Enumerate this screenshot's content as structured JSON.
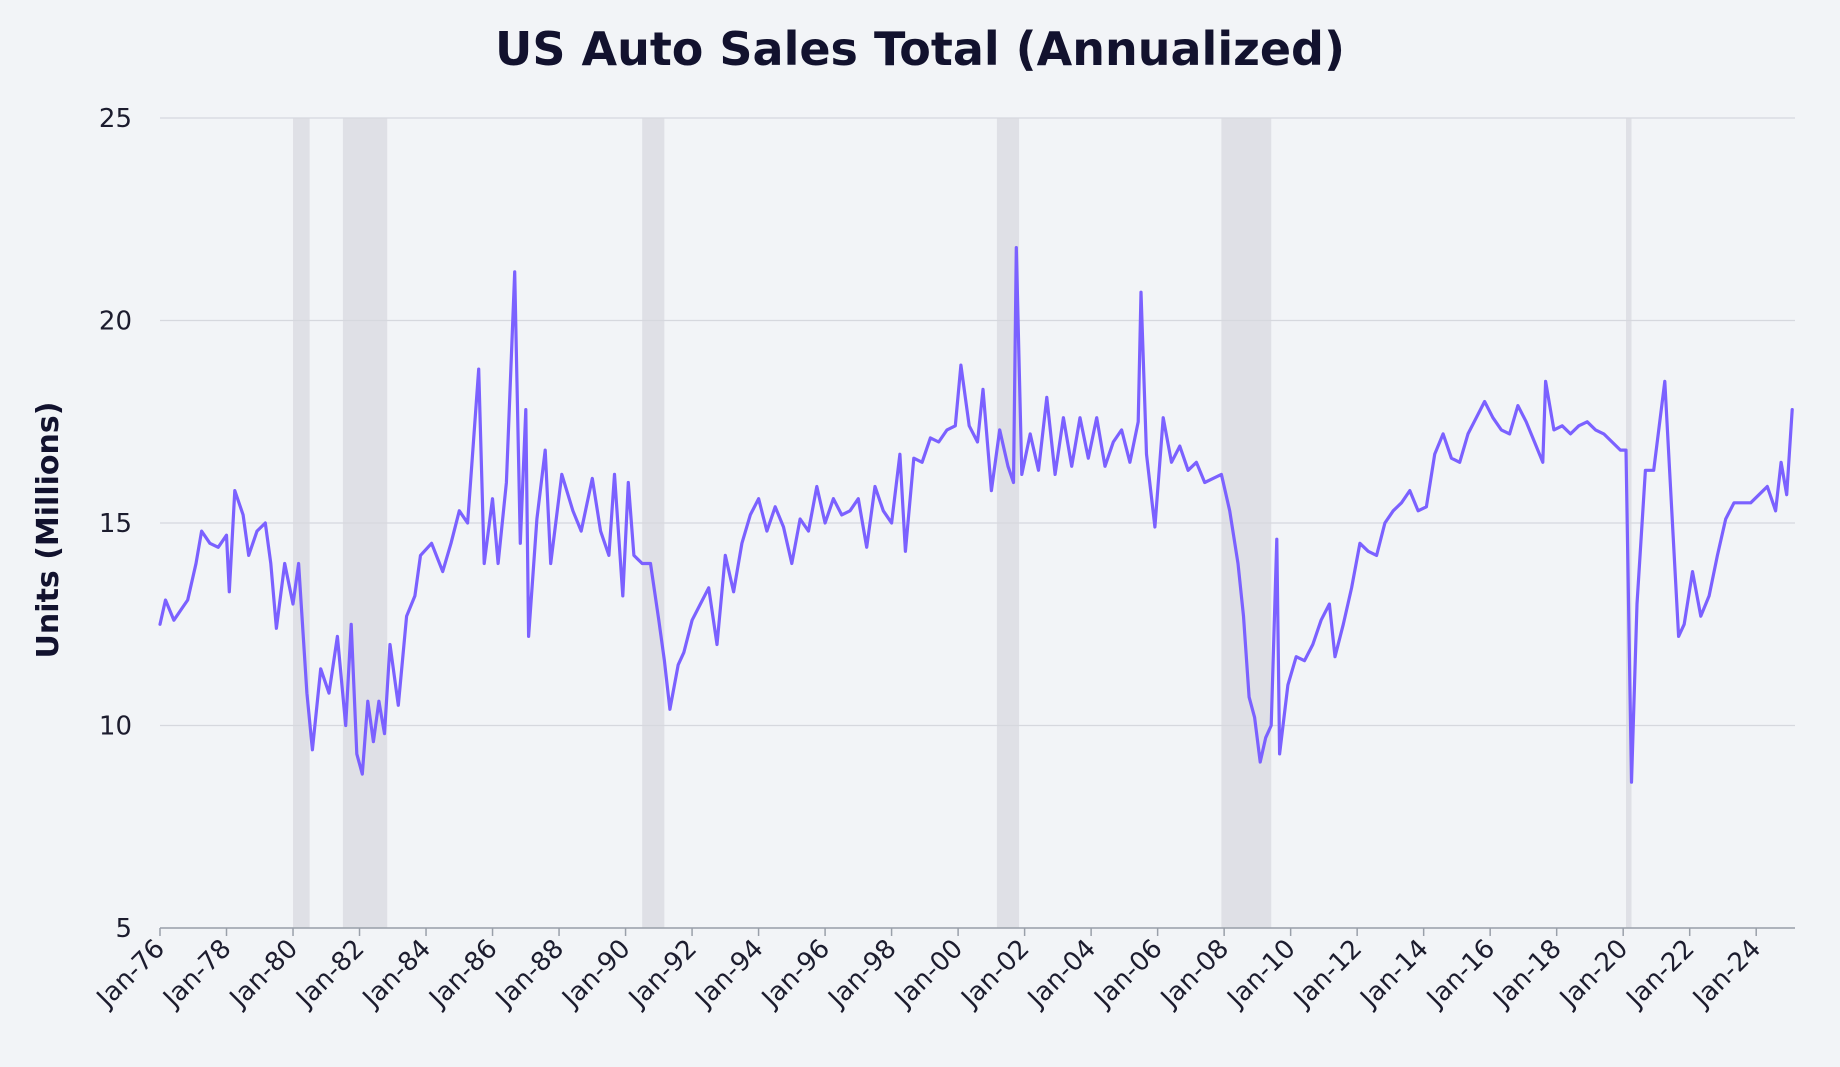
{
  "chart_data": {
    "type": "line",
    "title": "US Auto Sales Total (Annualized)",
    "xlabel": "",
    "ylabel": "Units (Millions)",
    "ylim": [
      5,
      25
    ],
    "yticks": [
      5,
      10,
      15,
      20,
      25
    ],
    "xlim": [
      "1976-01",
      "2025-03"
    ],
    "xticks": [
      "Jan-76",
      "Jan-78",
      "Jan-80",
      "Jan-82",
      "Jan-84",
      "Jan-86",
      "Jan-88",
      "Jan-90",
      "Jan-92",
      "Jan-94",
      "Jan-96",
      "Jan-98",
      "Jan-00",
      "Jan-02",
      "Jan-04",
      "Jan-06",
      "Jan-08",
      "Jan-10",
      "Jan-12",
      "Jan-14",
      "Jan-16",
      "Jan-18",
      "Jan-20",
      "Jan-22",
      "Jan-24"
    ],
    "grid": true,
    "legend": "none",
    "colors": {
      "line": "#7b61ff",
      "recession": "#dfe0e6",
      "grid": "#d6d8de",
      "background": "#f2f4f7"
    },
    "recession_periods": [
      [
        "1980-01",
        "1980-07"
      ],
      [
        "1981-07",
        "1982-11"
      ],
      [
        "1990-07",
        "1991-03"
      ],
      [
        "2001-03",
        "2001-11"
      ],
      [
        "2007-12",
        "2009-06"
      ],
      [
        "2020-02",
        "2020-04"
      ]
    ],
    "series": [
      {
        "values": [
          [
            "1976-01",
            12.5
          ],
          [
            "1976-03",
            13.1
          ],
          [
            "1976-06",
            12.6
          ],
          [
            "1976-09",
            12.9
          ],
          [
            "1976-11",
            13.1
          ],
          [
            "1977-02",
            14.0
          ],
          [
            "1977-04",
            14.8
          ],
          [
            "1977-07",
            14.5
          ],
          [
            "1977-10",
            14.4
          ],
          [
            "1978-01",
            14.7
          ],
          [
            "1978-02",
            13.3
          ],
          [
            "1978-04",
            15.8
          ],
          [
            "1978-07",
            15.2
          ],
          [
            "1978-09",
            14.2
          ],
          [
            "1978-12",
            14.8
          ],
          [
            "1979-03",
            15.0
          ],
          [
            "1979-05",
            14.0
          ],
          [
            "1979-07",
            12.4
          ],
          [
            "1979-10",
            14.0
          ],
          [
            "1980-01",
            13.0
          ],
          [
            "1980-03",
            14.0
          ],
          [
            "1980-06",
            10.8
          ],
          [
            "1980-08",
            9.4
          ],
          [
            "1980-11",
            11.4
          ],
          [
            "1981-02",
            10.8
          ],
          [
            "1981-05",
            12.2
          ],
          [
            "1981-08",
            10.0
          ],
          [
            "1981-10",
            12.5
          ],
          [
            "1981-12",
            9.3
          ],
          [
            "1982-02",
            8.8
          ],
          [
            "1982-04",
            10.6
          ],
          [
            "1982-06",
            9.6
          ],
          [
            "1982-08",
            10.6
          ],
          [
            "1982-10",
            9.8
          ],
          [
            "1982-12",
            12.0
          ],
          [
            "1983-03",
            10.5
          ],
          [
            "1983-06",
            12.7
          ],
          [
            "1983-09",
            13.2
          ],
          [
            "1983-11",
            14.2
          ],
          [
            "1984-03",
            14.5
          ],
          [
            "1984-07",
            13.8
          ],
          [
            "1984-10",
            14.5
          ],
          [
            "1985-01",
            15.3
          ],
          [
            "1985-04",
            15.0
          ],
          [
            "1985-08",
            18.8
          ],
          [
            "1985-10",
            14.0
          ],
          [
            "1986-01",
            15.6
          ],
          [
            "1986-03",
            14.0
          ],
          [
            "1986-06",
            16.0
          ],
          [
            "1986-09",
            21.2
          ],
          [
            "1986-11",
            14.5
          ],
          [
            "1987-01",
            17.8
          ],
          [
            "1987-02",
            12.2
          ],
          [
            "1987-05",
            15.1
          ],
          [
            "1987-08",
            16.8
          ],
          [
            "1987-10",
            14.0
          ],
          [
            "1988-02",
            16.2
          ],
          [
            "1988-06",
            15.3
          ],
          [
            "1988-09",
            14.8
          ],
          [
            "1989-01",
            16.1
          ],
          [
            "1989-04",
            14.8
          ],
          [
            "1989-07",
            14.2
          ],
          [
            "1989-09",
            16.2
          ],
          [
            "1989-12",
            13.2
          ],
          [
            "1990-02",
            16.0
          ],
          [
            "1990-04",
            14.2
          ],
          [
            "1990-07",
            14.0
          ],
          [
            "1990-10",
            14.0
          ],
          [
            "1991-01",
            12.6
          ],
          [
            "1991-03",
            11.6
          ],
          [
            "1991-05",
            10.4
          ],
          [
            "1991-08",
            11.5
          ],
          [
            "1991-10",
            11.8
          ],
          [
            "1992-01",
            12.6
          ],
          [
            "1992-04",
            13.0
          ],
          [
            "1992-07",
            13.4
          ],
          [
            "1992-10",
            12.0
          ],
          [
            "1993-01",
            14.2
          ],
          [
            "1993-04",
            13.3
          ],
          [
            "1993-07",
            14.5
          ],
          [
            "1993-10",
            15.2
          ],
          [
            "1994-01",
            15.6
          ],
          [
            "1994-04",
            14.8
          ],
          [
            "1994-07",
            15.4
          ],
          [
            "1994-10",
            14.9
          ],
          [
            "1995-01",
            14.0
          ],
          [
            "1995-04",
            15.1
          ],
          [
            "1995-07",
            14.8
          ],
          [
            "1995-10",
            15.9
          ],
          [
            "1996-01",
            15.0
          ],
          [
            "1996-04",
            15.6
          ],
          [
            "1996-07",
            15.2
          ],
          [
            "1996-10",
            15.3
          ],
          [
            "1997-01",
            15.6
          ],
          [
            "1997-04",
            14.4
          ],
          [
            "1997-07",
            15.9
          ],
          [
            "1997-10",
            15.3
          ],
          [
            "1998-01",
            15.0
          ],
          [
            "1998-04",
            16.7
          ],
          [
            "1998-06",
            14.3
          ],
          [
            "1998-09",
            16.6
          ],
          [
            "1998-12",
            16.5
          ],
          [
            "1999-03",
            17.1
          ],
          [
            "1999-06",
            17.0
          ],
          [
            "1999-09",
            17.3
          ],
          [
            "1999-12",
            17.4
          ],
          [
            "2000-02",
            18.9
          ],
          [
            "2000-05",
            17.4
          ],
          [
            "2000-08",
            17.0
          ],
          [
            "2000-10",
            18.3
          ],
          [
            "2001-01",
            15.8
          ],
          [
            "2001-04",
            17.3
          ],
          [
            "2001-07",
            16.4
          ],
          [
            "2001-09",
            16.0
          ],
          [
            "2001-10",
            21.8
          ],
          [
            "2001-12",
            16.2
          ],
          [
            "2002-03",
            17.2
          ],
          [
            "2002-06",
            16.3
          ],
          [
            "2002-09",
            18.1
          ],
          [
            "2002-12",
            16.2
          ],
          [
            "2003-03",
            17.6
          ],
          [
            "2003-06",
            16.4
          ],
          [
            "2003-09",
            17.6
          ],
          [
            "2003-12",
            16.6
          ],
          [
            "2004-03",
            17.6
          ],
          [
            "2004-06",
            16.4
          ],
          [
            "2004-09",
            17.0
          ],
          [
            "2004-12",
            17.3
          ],
          [
            "2005-03",
            16.5
          ],
          [
            "2005-06",
            17.5
          ],
          [
            "2005-07",
            20.7
          ],
          [
            "2005-09",
            16.7
          ],
          [
            "2005-12",
            14.9
          ],
          [
            "2006-03",
            17.6
          ],
          [
            "2006-06",
            16.5
          ],
          [
            "2006-09",
            16.9
          ],
          [
            "2006-12",
            16.3
          ],
          [
            "2007-03",
            16.5
          ],
          [
            "2007-06",
            16.0
          ],
          [
            "2007-09",
            16.1
          ],
          [
            "2007-12",
            16.2
          ],
          [
            "2008-03",
            15.3
          ],
          [
            "2008-06",
            14.0
          ],
          [
            "2008-08",
            12.7
          ],
          [
            "2008-10",
            10.7
          ],
          [
            "2008-12",
            10.2
          ],
          [
            "2009-02",
            9.1
          ],
          [
            "2009-04",
            9.7
          ],
          [
            "2009-06",
            10.0
          ],
          [
            "2009-08",
            14.6
          ],
          [
            "2009-09",
            9.3
          ],
          [
            "2009-12",
            11.0
          ],
          [
            "2010-03",
            11.7
          ],
          [
            "2010-06",
            11.6
          ],
          [
            "2010-09",
            12.0
          ],
          [
            "2010-12",
            12.6
          ],
          [
            "2011-03",
            13.0
          ],
          [
            "2011-05",
            11.7
          ],
          [
            "2011-08",
            12.5
          ],
          [
            "2011-11",
            13.4
          ],
          [
            "2012-02",
            14.5
          ],
          [
            "2012-05",
            14.3
          ],
          [
            "2012-08",
            14.2
          ],
          [
            "2012-11",
            15.0
          ],
          [
            "2013-02",
            15.3
          ],
          [
            "2013-05",
            15.5
          ],
          [
            "2013-08",
            15.8
          ],
          [
            "2013-11",
            15.3
          ],
          [
            "2014-02",
            15.4
          ],
          [
            "2014-05",
            16.7
          ],
          [
            "2014-08",
            17.2
          ],
          [
            "2014-11",
            16.6
          ],
          [
            "2015-02",
            16.5
          ],
          [
            "2015-05",
            17.2
          ],
          [
            "2015-08",
            17.6
          ],
          [
            "2015-11",
            18.0
          ],
          [
            "2016-02",
            17.6
          ],
          [
            "2016-05",
            17.3
          ],
          [
            "2016-08",
            17.2
          ],
          [
            "2016-11",
            17.9
          ],
          [
            "2017-02",
            17.5
          ],
          [
            "2017-05",
            17.0
          ],
          [
            "2017-08",
            16.5
          ],
          [
            "2017-09",
            18.5
          ],
          [
            "2017-12",
            17.3
          ],
          [
            "2018-03",
            17.4
          ],
          [
            "2018-06",
            17.2
          ],
          [
            "2018-09",
            17.4
          ],
          [
            "2018-12",
            17.5
          ],
          [
            "2019-03",
            17.3
          ],
          [
            "2019-06",
            17.2
          ],
          [
            "2019-09",
            17.0
          ],
          [
            "2019-12",
            16.8
          ],
          [
            "2020-02",
            16.8
          ],
          [
            "2020-04",
            8.6
          ],
          [
            "2020-06",
            13.0
          ],
          [
            "2020-09",
            16.3
          ],
          [
            "2020-12",
            16.3
          ],
          [
            "2021-04",
            18.5
          ],
          [
            "2021-07",
            14.7
          ],
          [
            "2021-09",
            12.2
          ],
          [
            "2021-11",
            12.5
          ],
          [
            "2022-02",
            13.8
          ],
          [
            "2022-05",
            12.7
          ],
          [
            "2022-08",
            13.2
          ],
          [
            "2022-11",
            14.2
          ],
          [
            "2023-02",
            15.1
          ],
          [
            "2023-05",
            15.5
          ],
          [
            "2023-08",
            15.5
          ],
          [
            "2023-11",
            15.5
          ],
          [
            "2024-02",
            15.7
          ],
          [
            "2024-05",
            15.9
          ],
          [
            "2024-08",
            15.3
          ],
          [
            "2024-10",
            16.5
          ],
          [
            "2024-12",
            15.7
          ],
          [
            "2025-02",
            17.8
          ]
        ]
      }
    ]
  }
}
